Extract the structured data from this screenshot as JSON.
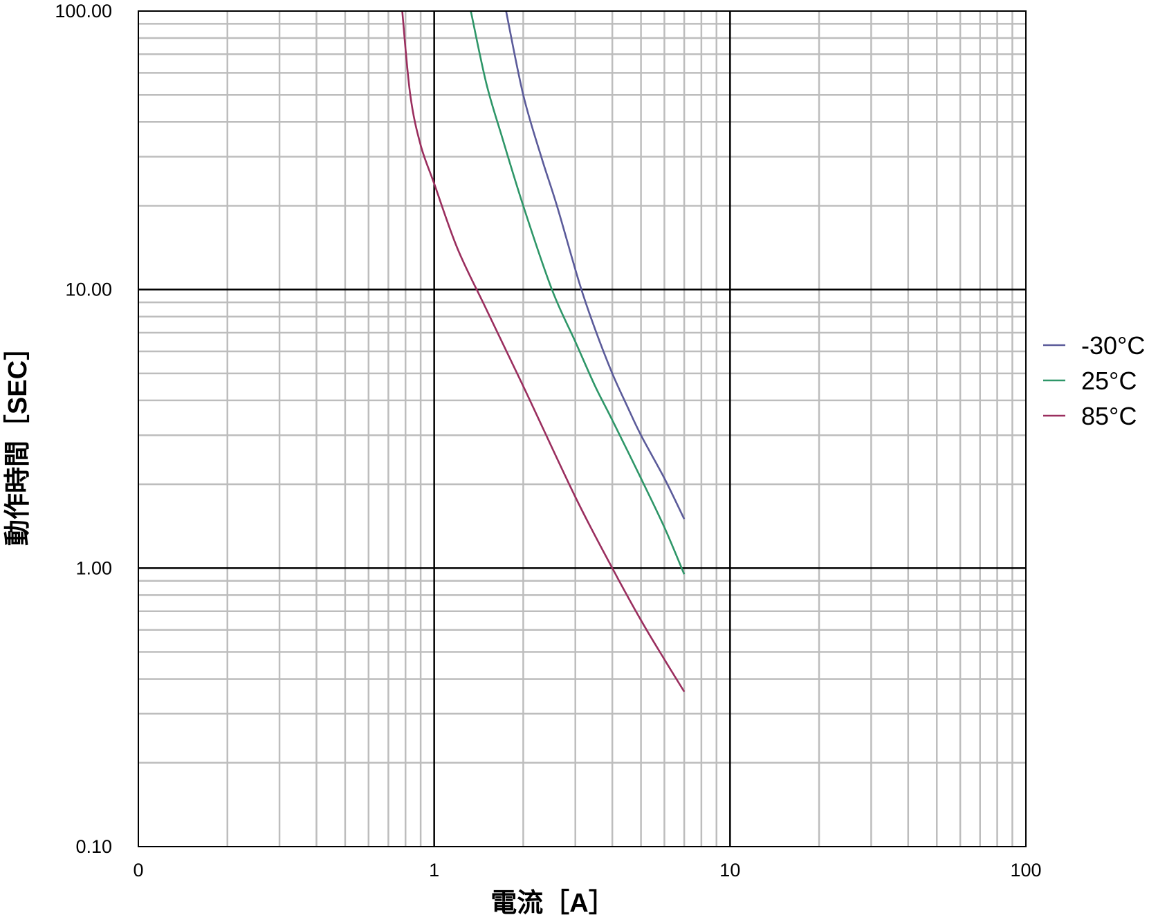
{
  "chart_data": {
    "type": "line",
    "title": "",
    "xlabel": "電流［A］",
    "ylabel": "動作時間［SEC］",
    "x_scale": "log",
    "y_scale": "log",
    "xlim": [
      0.1,
      100
    ],
    "ylim": [
      0.1,
      100
    ],
    "x_tick_labels": [
      {
        "value": 0.1,
        "label": "0"
      },
      {
        "value": 1,
        "label": "1"
      },
      {
        "value": 10,
        "label": "10"
      },
      {
        "value": 100,
        "label": "100"
      }
    ],
    "y_tick_labels": [
      {
        "value": 0.1,
        "label": "0.10"
      },
      {
        "value": 1,
        "label": "1.00"
      },
      {
        "value": 10,
        "label": "10.00"
      },
      {
        "value": 100,
        "label": "100.00"
      }
    ],
    "grid": true,
    "legend_position": "right",
    "series": [
      {
        "name": "-30°C",
        "color": "#5b5b9a",
        "points": [
          [
            1.75,
            100
          ],
          [
            2.0,
            50
          ],
          [
            2.3,
            30
          ],
          [
            2.6,
            20
          ],
          [
            3.1,
            10.5
          ],
          [
            3.5,
            7.2
          ],
          [
            4.0,
            5.0
          ],
          [
            4.5,
            3.8
          ],
          [
            5.0,
            3.0
          ],
          [
            6.0,
            2.1
          ],
          [
            7.0,
            1.5
          ]
        ]
      },
      {
        "name": "25°C",
        "color": "#2e9668",
        "points": [
          [
            1.33,
            100
          ],
          [
            1.5,
            55
          ],
          [
            1.7,
            35
          ],
          [
            2.0,
            20
          ],
          [
            2.5,
            10
          ],
          [
            3.0,
            6.5
          ],
          [
            3.5,
            4.5
          ],
          [
            4.0,
            3.4
          ],
          [
            5.0,
            2.1
          ],
          [
            6.0,
            1.4
          ],
          [
            7.0,
            0.95
          ]
        ]
      },
      {
        "name": "85°C",
        "color": "#9a2e5e",
        "points": [
          [
            0.78,
            100
          ],
          [
            0.83,
            50
          ],
          [
            0.9,
            33
          ],
          [
            1.0,
            24
          ],
          [
            1.2,
            14
          ],
          [
            1.5,
            8.5
          ],
          [
            2.0,
            4.5
          ],
          [
            3.0,
            1.8
          ],
          [
            4.0,
            1.0
          ],
          [
            5.0,
            0.65
          ],
          [
            6.0,
            0.47
          ],
          [
            7.0,
            0.36
          ]
        ]
      }
    ]
  }
}
